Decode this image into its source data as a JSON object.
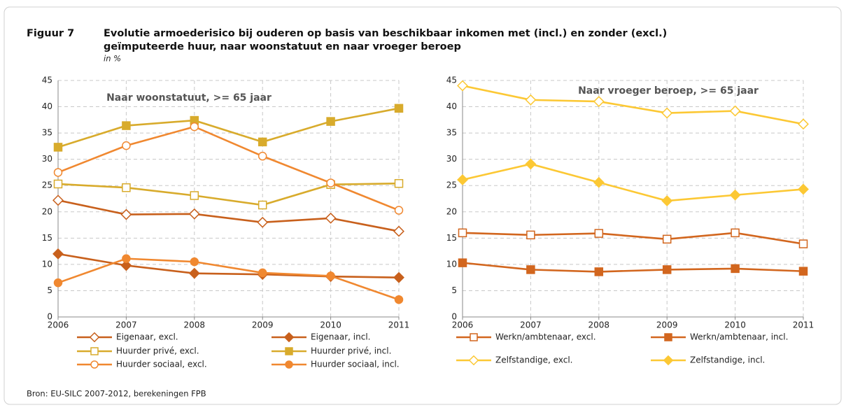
{
  "figure_label": "Figuur 7",
  "title_line1": "Evolutie armoederisico bij ouderen op basis van beschikbaar inkomen met (incl.) en zonder (excl.)",
  "title_line2": "geïmputeerde huur, naar woonstatuut en naar vroeger beroep",
  "unit": "in %",
  "source": "Bron: EU-SILC 2007-2012, berekeningen FPB",
  "chart_data": [
    {
      "type": "line",
      "title": "Naar woonstatuut, >= 65 jaar",
      "x": [
        2006,
        2007,
        2008,
        2009,
        2010,
        2011
      ],
      "xlim": [
        2006,
        2011
      ],
      "xticks": [
        2006,
        2007,
        2008,
        2009,
        2010,
        2011
      ],
      "ylim": [
        0,
        45
      ],
      "yticks": [
        0,
        5,
        10,
        15,
        20,
        25,
        30,
        35,
        40,
        45
      ],
      "grid": true,
      "series": [
        {
          "name": "Eigenaar, excl.",
          "color": "#c8601c",
          "marker": "diamond",
          "filled": false,
          "values": [
            22.2,
            19.5,
            19.6,
            18.0,
            18.8,
            16.3
          ]
        },
        {
          "name": "Eigenaar, incl.",
          "color": "#c8601c",
          "marker": "diamond",
          "filled": true,
          "values": [
            12.0,
            9.8,
            8.3,
            8.1,
            7.7,
            7.5
          ]
        },
        {
          "name": "Huurder privé, excl.",
          "color": "#d8ab2c",
          "marker": "square",
          "filled": false,
          "values": [
            25.3,
            24.6,
            23.1,
            21.3,
            25.2,
            25.4
          ]
        },
        {
          "name": "Huurder privé, incl.",
          "color": "#d8ab2c",
          "marker": "square",
          "filled": true,
          "values": [
            32.3,
            36.4,
            37.4,
            33.3,
            37.2,
            39.7
          ]
        },
        {
          "name": "Huurder sociaal, excl.",
          "color": "#f08830",
          "marker": "circle",
          "filled": false,
          "values": [
            27.5,
            32.6,
            36.2,
            30.6,
            25.5,
            20.3
          ]
        },
        {
          "name": "Huurder sociaal, incl.",
          "color": "#f08830",
          "marker": "circle",
          "filled": true,
          "values": [
            6.5,
            11.1,
            10.5,
            8.4,
            7.8,
            3.3
          ]
        }
      ]
    },
    {
      "type": "line",
      "title": "Naar vroeger beroep, >= 65 jaar",
      "x": [
        2006,
        2007,
        2008,
        2009,
        2010,
        2011
      ],
      "xlim": [
        2006,
        2011
      ],
      "xticks": [
        2006,
        2007,
        2008,
        2009,
        2010,
        2011
      ],
      "ylim": [
        0,
        45
      ],
      "yticks": [
        0,
        5,
        10,
        15,
        20,
        25,
        30,
        35,
        40,
        45
      ],
      "grid": true,
      "series": [
        {
          "name": "Werkn/ambtenaar, excl.",
          "color": "#d2661e",
          "marker": "square",
          "filled": false,
          "values": [
            16.0,
            15.6,
            15.9,
            14.8,
            16.0,
            13.9
          ]
        },
        {
          "name": "Werkn/ambtenaar, incl.",
          "color": "#d2661e",
          "marker": "square",
          "filled": true,
          "values": [
            10.3,
            9.0,
            8.6,
            9.0,
            9.2,
            8.7
          ]
        },
        {
          "name": "Zelfstandige, excl.",
          "color": "#fcc834",
          "marker": "diamond",
          "filled": false,
          "values": [
            44.0,
            41.3,
            41.0,
            38.8,
            39.2,
            36.7
          ]
        },
        {
          "name": "Zelfstandige, incl.",
          "color": "#fcc834",
          "marker": "diamond",
          "filled": true,
          "values": [
            26.1,
            29.1,
            25.6,
            22.1,
            23.2,
            24.3
          ]
        }
      ]
    }
  ]
}
